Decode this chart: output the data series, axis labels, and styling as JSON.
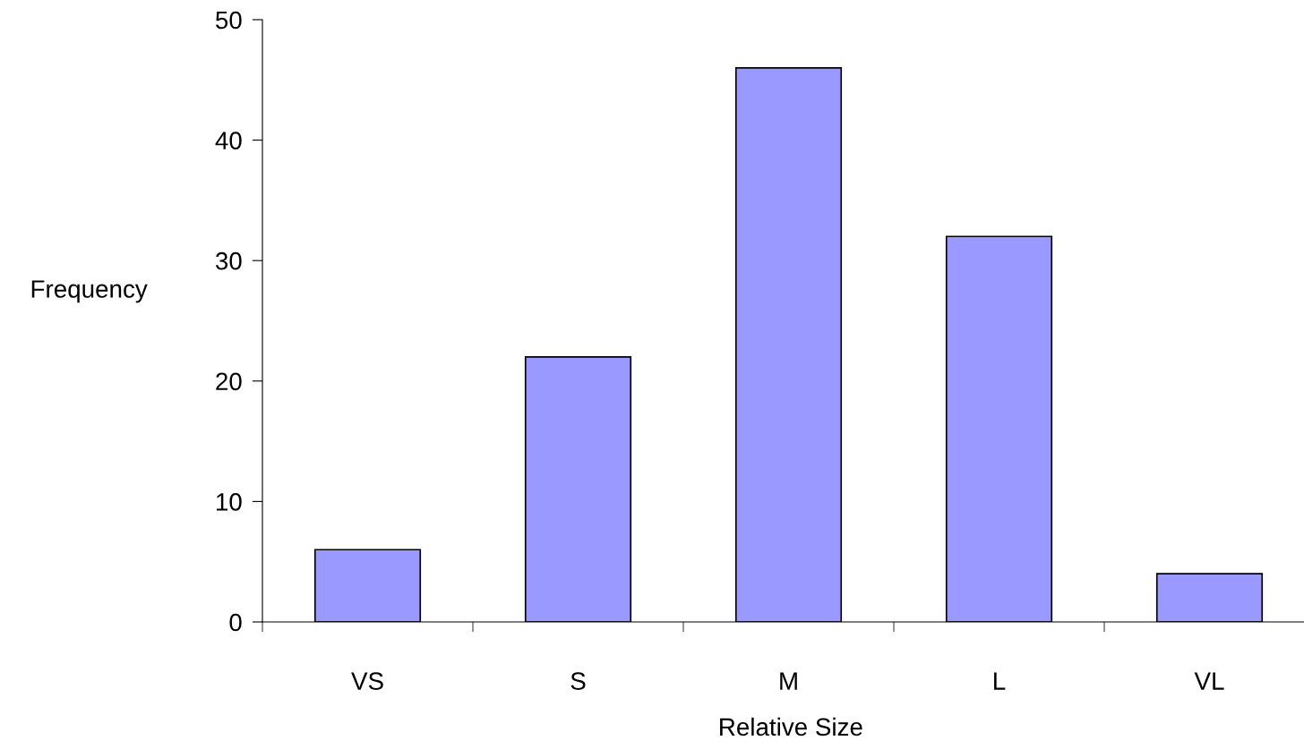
{
  "chart_data": {
    "type": "bar",
    "xlabel": "Relative Size",
    "ylabel": "Frequency",
    "categories": [
      "VS",
      "S",
      "M",
      "L",
      "VL"
    ],
    "values": [
      6,
      22,
      46,
      32,
      4
    ],
    "color": "#9999ff",
    "ylim": [
      0,
      50
    ],
    "yticks": [
      0,
      10,
      20,
      30,
      40,
      50
    ],
    "grid": false,
    "legend": false
  }
}
